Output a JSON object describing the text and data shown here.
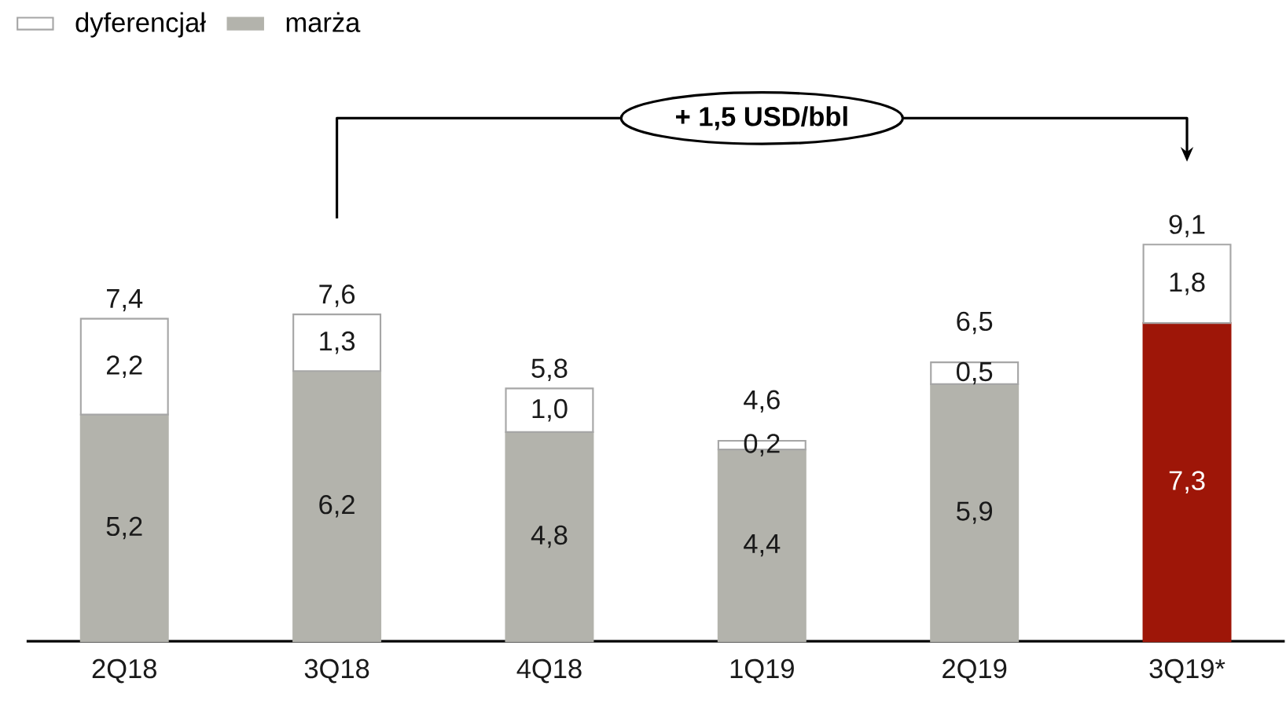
{
  "chart_data": {
    "type": "bar",
    "stacked": true,
    "categories": [
      "2Q18",
      "3Q18",
      "4Q18",
      "1Q19",
      "2Q19",
      "3Q19*"
    ],
    "series": [
      {
        "name": "marża",
        "colors": [
          "#b3b3ac",
          "#b3b3ac",
          "#b3b3ac",
          "#b3b3ac",
          "#b3b3ac",
          "#9e1608"
        ],
        "values": [
          5.2,
          6.2,
          4.8,
          4.4,
          5.9,
          7.3
        ],
        "value_labels": [
          "5,2",
          "6,2",
          "4,8",
          "4,4",
          "5,9",
          "7,3"
        ]
      },
      {
        "name": "dyferencjał",
        "color": "#ffffff",
        "values": [
          2.2,
          1.3,
          1.0,
          0.2,
          0.5,
          1.8
        ],
        "value_labels": [
          "2,2",
          "1,3",
          "1,0",
          "0,2",
          "0,5",
          "1,8"
        ]
      }
    ],
    "totals": [
      "7,4",
      "7,6",
      "5,8",
      "4,6",
      "6,5",
      "9,1"
    ],
    "annotations": [
      "+ 1,5 USD/bbl"
    ],
    "legend": "top left"
  }
}
